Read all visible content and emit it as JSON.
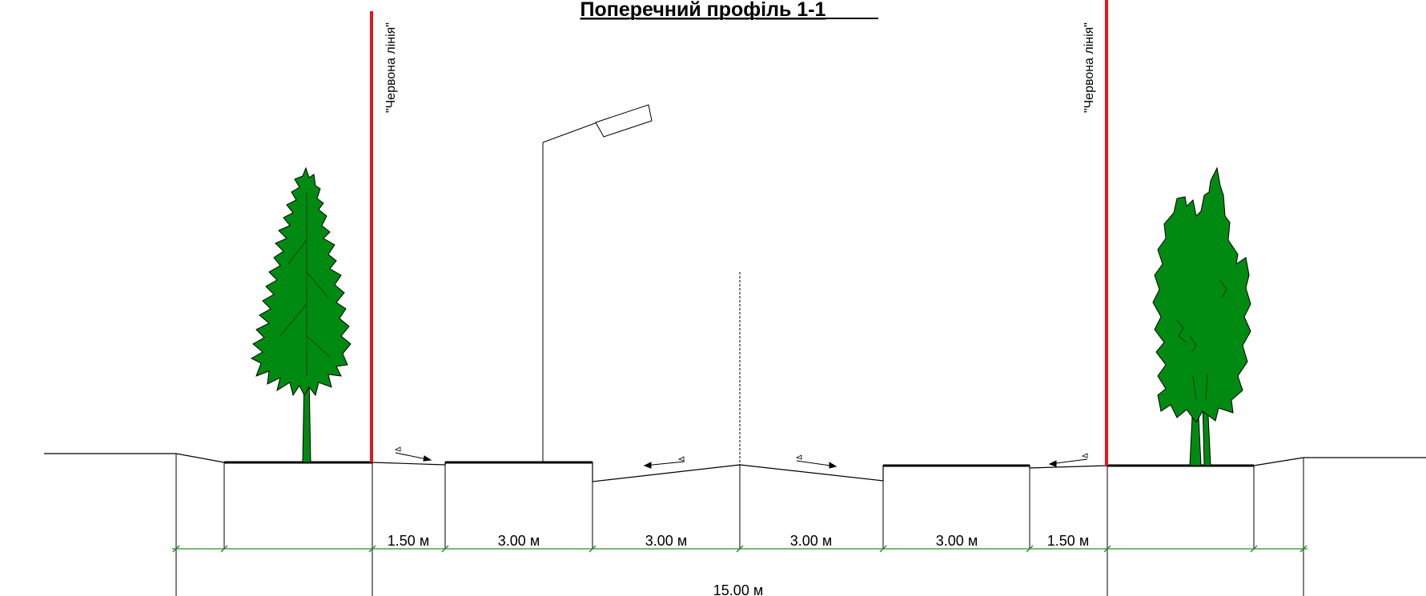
{
  "title": "Поперечний профіль 1-1",
  "red_line_label": "\"Червона лінія\"",
  "dimensions": {
    "left_sidewalk": "1.50 м",
    "left_strip": "3.00 м",
    "lane_left": "3.00 м",
    "lane_right": "3.00 м",
    "right_strip": "3.00 м",
    "right_sidewalk": "1.50 м",
    "total": "15.00 м"
  },
  "colors": {
    "red_line": "#e8141b",
    "tree": "#008a12",
    "dim_line": "#2e8b2e",
    "stroke": "#000000"
  },
  "icons": {
    "left_tree": "conifer-tree-icon",
    "right_tree": "cypress-tree-icon",
    "lamp": "street-lamp-icon"
  }
}
